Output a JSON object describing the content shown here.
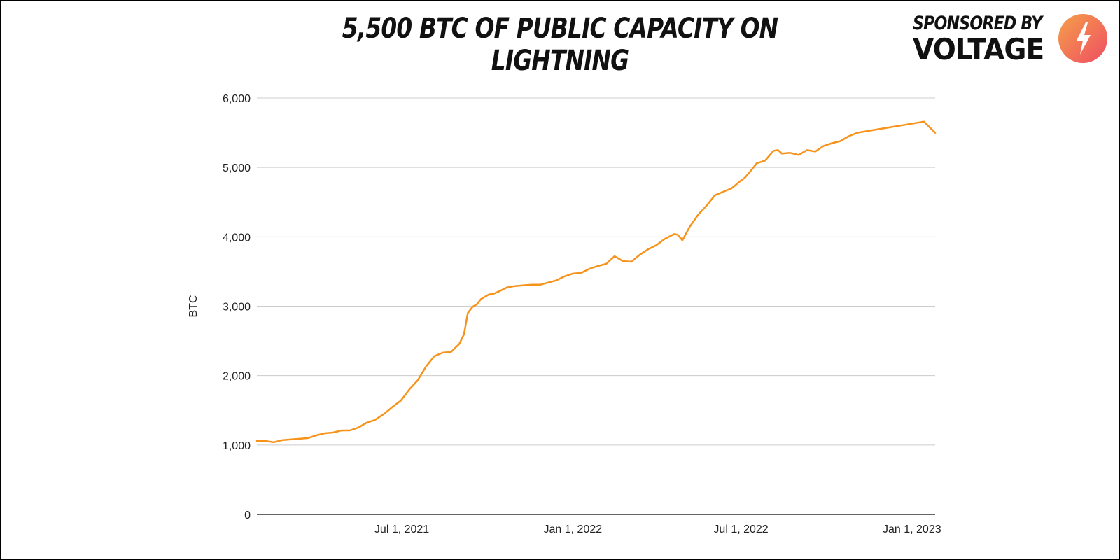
{
  "header": {
    "title": "5,500 BTC OF PUBLIC CAPACITY ON LIGHTNING",
    "sponsor_label": "SPONSORED BY",
    "sponsor_name": "VOLTAGE"
  },
  "colors": {
    "line": "#f7931a",
    "grid": "#cccccc",
    "axis": "#333333",
    "logo_start": "#f5a04a",
    "logo_end": "#ef4d62"
  },
  "chart_data": {
    "type": "line",
    "title": "5,500 BTC OF PUBLIC CAPACITY ON LIGHTNING",
    "xlabel": "",
    "ylabel": "BTC",
    "ylim": [
      0,
      6000
    ],
    "yticks": [
      0,
      1000,
      2000,
      3000,
      4000,
      5000,
      6000
    ],
    "ytick_labels": [
      "0",
      "1,000",
      "2,000",
      "3,000",
      "4,000",
      "5,000",
      "6,000"
    ],
    "xlim": [
      "2021-01-26",
      "2023-01-26"
    ],
    "xticks": [
      "2021-07-01",
      "2022-01-01",
      "2022-07-01",
      "2023-01-01"
    ],
    "xtick_labels": [
      "Jul 1, 2021",
      "Jan 1, 2022",
      "Jul 1, 2022",
      "Jan 1, 2023"
    ],
    "grid": true,
    "series": [
      {
        "name": "",
        "x": [
          "2021-01-26",
          "2021-02-04",
          "2021-02-13",
          "2021-02-22",
          "2021-03-03",
          "2021-03-13",
          "2021-03-22",
          "2021-03-31",
          "2021-04-09",
          "2021-04-18",
          "2021-04-27",
          "2021-05-06",
          "2021-05-15",
          "2021-05-24",
          "2021-06-02",
          "2021-06-12",
          "2021-06-21",
          "2021-06-30",
          "2021-07-09",
          "2021-07-18",
          "2021-07-27",
          "2021-08-05",
          "2021-08-14",
          "2021-08-23",
          "2021-09-01",
          "2021-09-06",
          "2021-09-10",
          "2021-09-15",
          "2021-09-20",
          "2021-09-24",
          "2021-09-29",
          "2021-10-03",
          "2021-10-08",
          "2021-10-13",
          "2021-10-22",
          "2021-10-31",
          "2021-11-08",
          "2021-11-18",
          "2021-11-27",
          "2021-12-05",
          "2021-12-14",
          "2021-12-23",
          "2022-01-01",
          "2022-01-10",
          "2022-01-19",
          "2022-01-28",
          "2022-02-06",
          "2022-02-15",
          "2022-02-24",
          "2022-03-05",
          "2022-03-14",
          "2022-03-23",
          "2022-04-01",
          "2022-04-10",
          "2022-04-20",
          "2022-04-24",
          "2022-04-29",
          "2022-05-07",
          "2022-05-16",
          "2022-05-25",
          "2022-06-03",
          "2022-06-12",
          "2022-06-21",
          "2022-06-30",
          "2022-07-05",
          "2022-07-09",
          "2022-07-18",
          "2022-07-27",
          "2022-08-05",
          "2022-08-10",
          "2022-08-14",
          "2022-08-23",
          "2022-09-01",
          "2022-09-10",
          "2022-09-19",
          "2022-09-28",
          "2022-10-07",
          "2022-10-16",
          "2022-10-25",
          "2022-11-03",
          "2022-11-12",
          "2022-11-21",
          "2022-11-30",
          "2022-12-09",
          "2022-12-18",
          "2022-12-27",
          "2023-01-05",
          "2023-01-14",
          "2023-01-26"
        ],
        "y": [
          1060,
          1060,
          1040,
          1070,
          1080,
          1090,
          1100,
          1140,
          1170,
          1180,
          1210,
          1210,
          1250,
          1320,
          1360,
          1450,
          1550,
          1640,
          1800,
          1930,
          2130,
          2280,
          2330,
          2340,
          2460,
          2600,
          2900,
          2990,
          3030,
          3100,
          3140,
          3170,
          3180,
          3210,
          3270,
          3290,
          3300,
          3310,
          3310,
          3340,
          3370,
          3430,
          3470,
          3480,
          3540,
          3580,
          3610,
          3720,
          3650,
          3640,
          3740,
          3820,
          3880,
          3970,
          4040,
          4030,
          3950,
          4150,
          4320,
          4450,
          4600,
          4650,
          4700,
          4800,
          4850,
          4910,
          5060,
          5100,
          5240,
          5250,
          5200,
          5210,
          5180,
          5250,
          5230,
          5310,
          5350,
          5380,
          5450,
          5500,
          5520,
          5540,
          5560,
          5580,
          5600,
          5620,
          5640,
          5660,
          5500
        ]
      }
    ]
  }
}
